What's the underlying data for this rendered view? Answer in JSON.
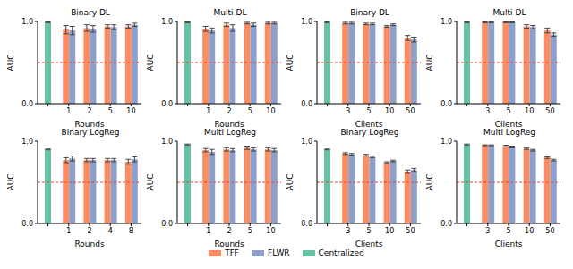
{
  "chart_data": [
    {
      "type": "bar",
      "title": "Binary DL",
      "xlabel": "Rounds",
      "ylabel": "AUC",
      "categories": [
        null,
        "1",
        "2",
        "5",
        "10"
      ],
      "ylim": [
        0,
        1
      ],
      "yticks": [
        {
          "value": 0,
          "label": "0.0"
        },
        {
          "value": 1,
          "label": "1.0"
        }
      ],
      "baseline": 0.5,
      "series": [
        {
          "name": "TFF",
          "color": "#fc8d62",
          "values": [
            null,
            0.9,
            0.92,
            0.94,
            0.94
          ],
          "errors": [
            null,
            0.05,
            0.04,
            0.02,
            0.02
          ]
        },
        {
          "name": "FLWR",
          "color": "#8da0cb",
          "values": [
            null,
            0.89,
            0.91,
            0.93,
            0.96
          ],
          "errors": [
            null,
            0.05,
            0.04,
            0.03,
            0.02
          ]
        },
        {
          "name": "Centralized",
          "color": "#66c2a5",
          "values": [
            0.99,
            null,
            null,
            null,
            null
          ],
          "errors": [
            0.005,
            null,
            null,
            null,
            null
          ]
        }
      ]
    },
    {
      "type": "bar",
      "title": "Multi DL",
      "xlabel": "Rounds",
      "ylabel": "AUC",
      "categories": [
        null,
        "1",
        "2",
        "5",
        "10"
      ],
      "ylim": [
        0,
        1
      ],
      "yticks": [
        {
          "value": 0,
          "label": "0.0"
        },
        {
          "value": 1,
          "label": "1.0"
        }
      ],
      "baseline": 0.5,
      "series": [
        {
          "name": "TFF",
          "color": "#fc8d62",
          "values": [
            null,
            0.91,
            0.96,
            0.98,
            0.98
          ],
          "errors": [
            null,
            0.03,
            0.02,
            0.01,
            0.01
          ]
        },
        {
          "name": "FLWR",
          "color": "#8da0cb",
          "values": [
            null,
            0.89,
            0.92,
            0.96,
            0.98
          ],
          "errors": [
            null,
            0.03,
            0.04,
            0.02,
            0.01
          ]
        },
        {
          "name": "Centralized",
          "color": "#66c2a5",
          "values": [
            0.99,
            null,
            null,
            null,
            null
          ],
          "errors": [
            0.005,
            null,
            null,
            null,
            null
          ]
        }
      ]
    },
    {
      "type": "bar",
      "title": "Binary DL",
      "xlabel": "Clients",
      "ylabel": "AUC",
      "categories": [
        null,
        "3",
        "5",
        "10",
        "50"
      ],
      "ylim": [
        0,
        1
      ],
      "yticks": [
        {
          "value": 0,
          "label": "0.0"
        },
        {
          "value": 1,
          "label": "1.0"
        }
      ],
      "baseline": 0.5,
      "series": [
        {
          "name": "TFF",
          "color": "#fc8d62",
          "values": [
            null,
            0.98,
            0.97,
            0.94,
            0.8
          ],
          "errors": [
            null,
            0.01,
            0.01,
            0.01,
            0.03
          ]
        },
        {
          "name": "FLWR",
          "color": "#8da0cb",
          "values": [
            null,
            0.98,
            0.97,
            0.96,
            0.78
          ],
          "errors": [
            null,
            0.01,
            0.01,
            0.01,
            0.03
          ]
        },
        {
          "name": "Centralized",
          "color": "#66c2a5",
          "values": [
            0.99,
            null,
            null,
            null,
            null
          ],
          "errors": [
            0.005,
            null,
            null,
            null,
            null
          ]
        }
      ]
    },
    {
      "type": "bar",
      "title": "Multi DL",
      "xlabel": "Clients",
      "ylabel": "AUC",
      "categories": [
        null,
        "3",
        "5",
        "10",
        "50"
      ],
      "ylim": [
        0,
        1
      ],
      "yticks": [
        {
          "value": 0,
          "label": "0.0"
        },
        {
          "value": 1,
          "label": "1.0"
        }
      ],
      "baseline": 0.5,
      "series": [
        {
          "name": "TFF",
          "color": "#fc8d62",
          "values": [
            null,
            0.99,
            0.99,
            0.94,
            0.89
          ],
          "errors": [
            null,
            0.005,
            0.005,
            0.02,
            0.03
          ]
        },
        {
          "name": "FLWR",
          "color": "#8da0cb",
          "values": [
            null,
            0.99,
            0.99,
            0.93,
            0.84
          ],
          "errors": [
            null,
            0.005,
            0.005,
            0.02,
            0.02
          ]
        },
        {
          "name": "Centralized",
          "color": "#66c2a5",
          "values": [
            0.99,
            null,
            null,
            null,
            null
          ],
          "errors": [
            0.005,
            null,
            null,
            null,
            null
          ]
        }
      ]
    },
    {
      "type": "bar",
      "title": "Binary LogReg",
      "xlabel": "Rounds",
      "ylabel": "AUC",
      "categories": [
        null,
        "1",
        "2",
        "4",
        "8"
      ],
      "ylim": [
        0,
        1
      ],
      "yticks": [
        {
          "value": 0,
          "label": "0.0"
        },
        {
          "value": 1,
          "label": "1.0"
        }
      ],
      "baseline": 0.5,
      "series": [
        {
          "name": "TFF",
          "color": "#fc8d62",
          "values": [
            null,
            0.77,
            0.77,
            0.77,
            0.75
          ],
          "errors": [
            null,
            0.03,
            0.02,
            0.02,
            0.03
          ]
        },
        {
          "name": "FLWR",
          "color": "#8da0cb",
          "values": [
            null,
            0.79,
            0.77,
            0.77,
            0.78
          ],
          "errors": [
            null,
            0.03,
            0.02,
            0.02,
            0.03
          ]
        },
        {
          "name": "Centralized",
          "color": "#66c2a5",
          "values": [
            0.9,
            null,
            null,
            null,
            null
          ],
          "errors": [
            0.005,
            null,
            null,
            null,
            null
          ]
        }
      ]
    },
    {
      "type": "bar",
      "title": "Multi LogReg",
      "xlabel": "Rounds",
      "ylabel": "AUC",
      "categories": [
        null,
        "1",
        "2",
        "5",
        "10"
      ],
      "ylim": [
        0,
        1
      ],
      "yticks": [
        {
          "value": 0,
          "label": "0.0"
        },
        {
          "value": 1,
          "label": "1.0"
        }
      ],
      "baseline": 0.5,
      "series": [
        {
          "name": "TFF",
          "color": "#fc8d62",
          "values": [
            null,
            0.89,
            0.9,
            0.92,
            0.9
          ],
          "errors": [
            null,
            0.02,
            0.02,
            0.02,
            0.02
          ]
        },
        {
          "name": "FLWR",
          "color": "#8da0cb",
          "values": [
            null,
            0.87,
            0.89,
            0.9,
            0.89
          ],
          "errors": [
            null,
            0.03,
            0.02,
            0.02,
            0.02
          ]
        },
        {
          "name": "Centralized",
          "color": "#66c2a5",
          "values": [
            0.96,
            null,
            null,
            null,
            null
          ],
          "errors": [
            0.005,
            null,
            null,
            null,
            null
          ]
        }
      ]
    },
    {
      "type": "bar",
      "title": "Binary LogReg",
      "xlabel": "Clients",
      "ylabel": "AUC",
      "categories": [
        null,
        "3",
        "5",
        "10",
        "50"
      ],
      "ylim": [
        0,
        1
      ],
      "yticks": [
        {
          "value": 0,
          "label": "0.0"
        },
        {
          "value": 1,
          "label": "1.0"
        }
      ],
      "baseline": 0.5,
      "series": [
        {
          "name": "TFF",
          "color": "#fc8d62",
          "values": [
            null,
            0.85,
            0.83,
            0.74,
            0.63
          ],
          "errors": [
            null,
            0.01,
            0.01,
            0.01,
            0.02
          ]
        },
        {
          "name": "FLWR",
          "color": "#8da0cb",
          "values": [
            null,
            0.84,
            0.81,
            0.76,
            0.65
          ],
          "errors": [
            null,
            0.01,
            0.01,
            0.01,
            0.02
          ]
        },
        {
          "name": "Centralized",
          "color": "#66c2a5",
          "values": [
            0.9,
            null,
            null,
            null,
            null
          ],
          "errors": [
            0.005,
            null,
            null,
            null,
            null
          ]
        }
      ]
    },
    {
      "type": "bar",
      "title": "Multi LogReg",
      "xlabel": "Clients",
      "ylabel": "AUC",
      "categories": [
        null,
        "3",
        "5",
        "10",
        "50"
      ],
      "ylim": [
        0,
        1
      ],
      "yticks": [
        {
          "value": 0,
          "label": "0.0"
        },
        {
          "value": 1,
          "label": "1.0"
        }
      ],
      "baseline": 0.5,
      "series": [
        {
          "name": "TFF",
          "color": "#fc8d62",
          "values": [
            null,
            0.95,
            0.94,
            0.91,
            0.8
          ],
          "errors": [
            null,
            0.005,
            0.01,
            0.01,
            0.01
          ]
        },
        {
          "name": "FLWR",
          "color": "#8da0cb",
          "values": [
            null,
            0.95,
            0.93,
            0.89,
            0.77
          ],
          "errors": [
            null,
            0.005,
            0.01,
            0.01,
            0.01
          ]
        },
        {
          "name": "Centralized",
          "color": "#66c2a5",
          "values": [
            0.96,
            null,
            null,
            null,
            null
          ],
          "errors": [
            0.005,
            null,
            null,
            null,
            null
          ]
        }
      ]
    }
  ]
}
